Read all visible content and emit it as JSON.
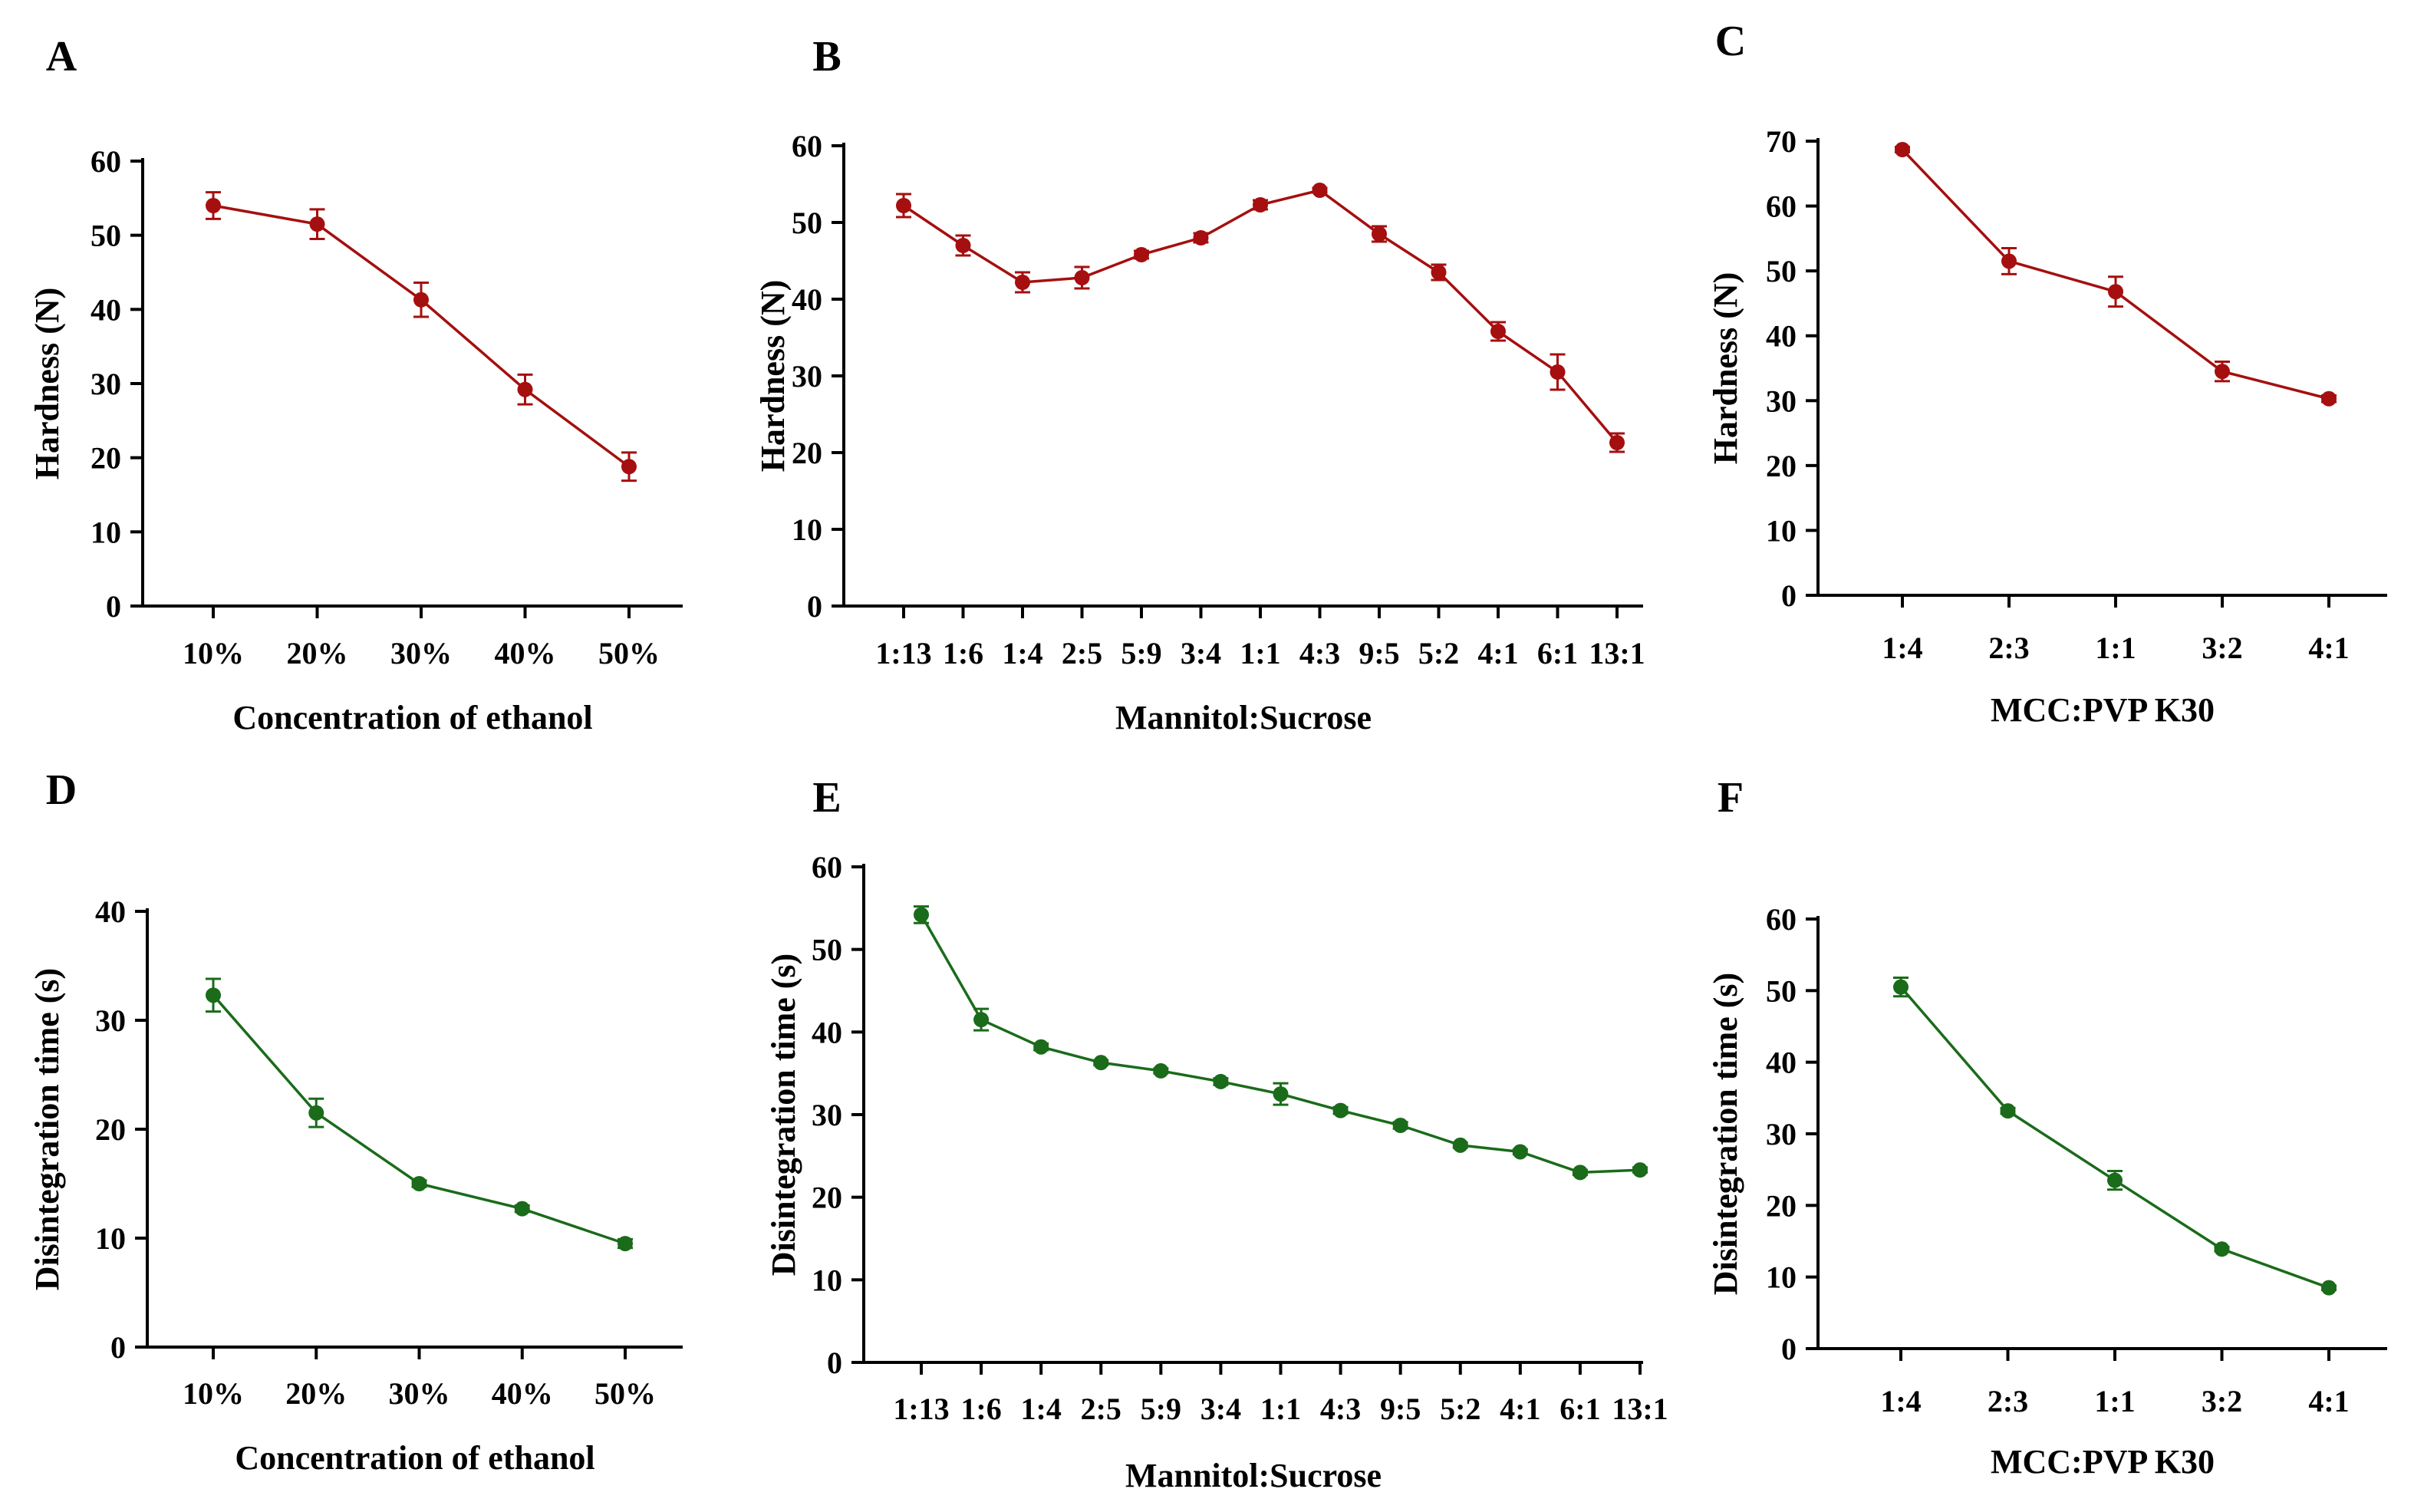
{
  "chart_data": [
    {
      "panel": "A",
      "type": "line",
      "color": "#a50f0f",
      "xlabel": "Concentration of ethanol",
      "ylabel": "Hardness (N)",
      "ylim": [
        0,
        60
      ],
      "yticks": [
        0,
        10,
        20,
        30,
        40,
        50,
        60
      ],
      "categories": [
        "10%",
        "20%",
        "30%",
        "40%",
        "50%"
      ],
      "values": [
        54.0,
        51.5,
        41.3,
        29.2,
        18.8
      ],
      "errors": [
        1.8,
        2.0,
        2.3,
        2.0,
        1.9
      ]
    },
    {
      "panel": "B",
      "type": "line",
      "color": "#a50f0f",
      "xlabel": "Mannitol:Sucrose",
      "ylabel": "Hardness (N)",
      "ylim": [
        0,
        60
      ],
      "yticks": [
        0,
        10,
        20,
        30,
        40,
        50,
        60
      ],
      "categories": [
        "1:13",
        "1:6",
        "1:4",
        "2:5",
        "5:9",
        "3:4",
        "1:1",
        "4:3",
        "9:5",
        "5:2",
        "4:1",
        "6:1",
        "13:1"
      ],
      "values": [
        52.2,
        47.0,
        42.2,
        42.8,
        45.8,
        48.0,
        52.3,
        54.2,
        48.5,
        43.5,
        35.8,
        30.5,
        21.3
      ],
      "errors": [
        1.5,
        1.3,
        1.3,
        1.4,
        0.5,
        0.6,
        0.6,
        0.3,
        1.0,
        1.0,
        1.2,
        2.3,
        1.2
      ]
    },
    {
      "panel": "C",
      "type": "line",
      "color": "#a50f0f",
      "xlabel": "MCC:PVP K30",
      "ylabel": "Hardness (N)",
      "ylim": [
        0,
        70
      ],
      "yticks": [
        0,
        10,
        20,
        30,
        40,
        50,
        60,
        70
      ],
      "categories": [
        "1:4",
        "2:3",
        "1:1",
        "3:2",
        "4:1"
      ],
      "values": [
        68.7,
        51.5,
        46.8,
        34.5,
        30.3
      ],
      "errors": [
        0.4,
        2.0,
        2.3,
        1.5,
        0.5
      ]
    },
    {
      "panel": "D",
      "type": "line",
      "color": "#1a6b1a",
      "xlabel": "Concentration of ethanol",
      "ylabel": "Disintegration time (s)",
      "ylim": [
        0,
        40
      ],
      "yticks": [
        0,
        10,
        20,
        30,
        40
      ],
      "categories": [
        "10%",
        "20%",
        "30%",
        "40%",
        "50%"
      ],
      "values": [
        32.3,
        21.5,
        15.0,
        12.7,
        9.5
      ],
      "errors": [
        1.5,
        1.3,
        0.3,
        0.3,
        0.4
      ]
    },
    {
      "panel": "E",
      "type": "line",
      "color": "#1a6b1a",
      "xlabel": "Mannitol:Sucrose",
      "ylabel": "Disintegration time (s)",
      "ylim": [
        0,
        60
      ],
      "yticks": [
        0,
        10,
        20,
        30,
        40,
        50,
        60
      ],
      "categories": [
        "1:13",
        "1:6",
        "1:4",
        "2:5",
        "5:9",
        "3:4",
        "1:1",
        "4:3",
        "9:5",
        "5:2",
        "4:1",
        "6:1",
        "13:1"
      ],
      "values": [
        54.2,
        41.5,
        38.2,
        36.3,
        35.3,
        34.0,
        32.5,
        30.5,
        28.7,
        26.3,
        25.5,
        23.0,
        23.3
      ],
      "errors": [
        1.0,
        1.3,
        0.4,
        0.3,
        0.3,
        0.4,
        1.3,
        0.4,
        0.4,
        0.3,
        0.3,
        0.3,
        0.3
      ]
    },
    {
      "panel": "F",
      "type": "line",
      "color": "#1a6b1a",
      "xlabel": "MCC:PVP K30",
      "ylabel": "Disintegration time (s)",
      "ylim": [
        0,
        60
      ],
      "yticks": [
        0,
        10,
        20,
        30,
        40,
        50,
        60
      ],
      "categories": [
        "1:4",
        "2:3",
        "1:1",
        "3:2",
        "4:1"
      ],
      "values": [
        50.5,
        33.2,
        23.5,
        13.9,
        8.5
      ],
      "errors": [
        1.3,
        0.4,
        1.3,
        0.3,
        0.3
      ]
    }
  ]
}
